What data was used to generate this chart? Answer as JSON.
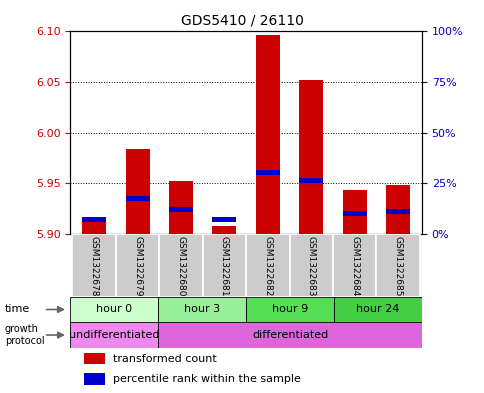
{
  "title": "GDS5410 / 26110",
  "samples": [
    "GSM1322678",
    "GSM1322679",
    "GSM1322680",
    "GSM1322681",
    "GSM1322682",
    "GSM1322683",
    "GSM1322684",
    "GSM1322685"
  ],
  "red_bar_bottom": [
    5.9,
    5.9,
    5.9,
    5.9,
    5.9,
    5.9,
    5.9,
    5.9
  ],
  "red_bar_top": [
    5.915,
    5.984,
    5.952,
    5.908,
    6.096,
    6.052,
    5.943,
    5.948
  ],
  "blue_bar_y": [
    5.912,
    5.932,
    5.922,
    5.912,
    5.958,
    5.95,
    5.918,
    5.92
  ],
  "blue_bar_height": 0.005,
  "ylim": [
    5.9,
    6.1
  ],
  "yticks_left": [
    5.9,
    5.95,
    6.0,
    6.05,
    6.1
  ],
  "yticks_right_labels": [
    "0%",
    "25%",
    "50%",
    "75%",
    "100%"
  ],
  "yticks_right_pos": [
    5.9,
    5.95,
    6.0,
    6.05,
    6.1
  ],
  "time_groups": [
    {
      "label": "hour 0",
      "start": 0,
      "end": 2,
      "color": "#ccffcc"
    },
    {
      "label": "hour 3",
      "start": 2,
      "end": 4,
      "color": "#99ee99"
    },
    {
      "label": "hour 9",
      "start": 4,
      "end": 6,
      "color": "#55dd55"
    },
    {
      "label": "hour 24",
      "start": 6,
      "end": 8,
      "color": "#44cc44"
    }
  ],
  "protocol_groups": [
    {
      "label": "undifferentiated",
      "start": 0,
      "end": 2,
      "color": "#ee88ee"
    },
    {
      "label": "differentiated",
      "start": 2,
      "end": 8,
      "color": "#dd66dd"
    }
  ],
  "bar_width": 0.55,
  "red_color": "#cc0000",
  "blue_color": "#0000cc",
  "left_tick_color": "#cc0000",
  "right_tick_color": "#0000cc",
  "sample_area_color": "#cccccc",
  "sample_border_color": "#aaaaaa"
}
